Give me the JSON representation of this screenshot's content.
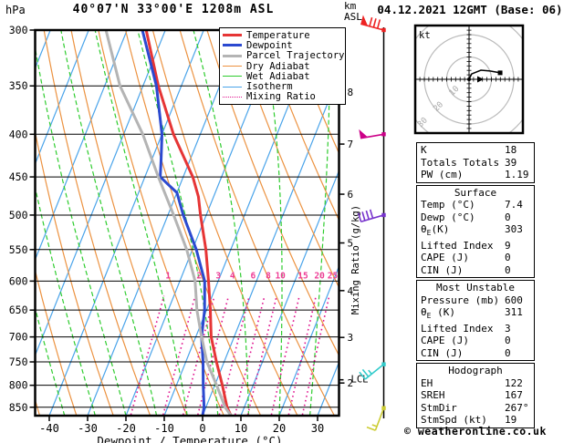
{
  "header": {
    "pressure_unit": "hPa",
    "station_title": "40°07'N 33°00'E 1208m ASL",
    "altitude_unit_line1": "km",
    "altitude_unit_line2": "ASL",
    "date_title": "04.12.2021 12GMT (Base: 06)"
  },
  "legend": {
    "items": [
      {
        "label": "Temperature",
        "color": "#e63535",
        "weight": 3,
        "dash": "solid"
      },
      {
        "label": "Dewpoint",
        "color": "#2b49d0",
        "weight": 3,
        "dash": "solid"
      },
      {
        "label": "Parcel Trajectory",
        "color": "#b4b4b4",
        "weight": 3,
        "dash": "solid"
      },
      {
        "label": "Dry Adiabat",
        "color": "#ec9240",
        "weight": 1.5,
        "dash": "solid"
      },
      {
        "label": "Wet Adiabat",
        "color": "#2ecc2e",
        "weight": 1.5,
        "dash": "solid"
      },
      {
        "label": "Isotherm",
        "color": "#4aa4ea",
        "weight": 1.5,
        "dash": "solid"
      },
      {
        "label": "Mixing Ratio",
        "color": "#e0138e",
        "weight": 1.5,
        "dash": "dotted"
      }
    ]
  },
  "axes": {
    "x_label": "Dewpoint / Temperature (°C)",
    "x_ticks": [
      -40,
      -30,
      -20,
      -10,
      0,
      10,
      20,
      30
    ],
    "pressure_ticks": [
      300,
      350,
      400,
      450,
      500,
      550,
      600,
      650,
      700,
      750,
      800,
      850
    ],
    "km_ticks": [
      {
        "km": 8,
        "p": 356
      },
      {
        "km": 7,
        "p": 411
      },
      {
        "km": 6,
        "p": 472
      },
      {
        "km": 5,
        "p": 540
      },
      {
        "km": 4,
        "p": 616
      },
      {
        "km": 3,
        "p": 701
      },
      {
        "km": 2,
        "p": 795
      }
    ],
    "lcl_label": "LCL",
    "lcl_pressure": 788,
    "mixing_axis_label": "Mixing Ratio (g/kg)"
  },
  "chart_data": {
    "type": "skewt-log-p",
    "pressure_range": [
      300,
      870
    ],
    "temp_axis_range_c": [
      -45,
      38
    ],
    "surface_pressure_mb": 870,
    "series": [
      {
        "name": "Temperature",
        "color": "#e63535",
        "width": 3,
        "points": [
          [
            300,
            -55
          ],
          [
            350,
            -46
          ],
          [
            400,
            -37
          ],
          [
            450,
            -27.5
          ],
          [
            475,
            -24
          ],
          [
            500,
            -21.5
          ],
          [
            550,
            -16.5
          ],
          [
            600,
            -12.5
          ],
          [
            650,
            -9
          ],
          [
            700,
            -6
          ],
          [
            750,
            -2
          ],
          [
            800,
            2
          ],
          [
            850,
            5.5
          ],
          [
            870,
            7.4
          ]
        ]
      },
      {
        "name": "Dewpoint",
        "color": "#2b49d0",
        "width": 3,
        "points": [
          [
            300,
            -56
          ],
          [
            350,
            -46.5
          ],
          [
            400,
            -40
          ],
          [
            430,
            -37.5
          ],
          [
            450,
            -36
          ],
          [
            460,
            -33
          ],
          [
            470,
            -30
          ],
          [
            500,
            -26
          ],
          [
            550,
            -19
          ],
          [
            600,
            -13.5
          ],
          [
            650,
            -10.5
          ],
          [
            700,
            -8.5
          ],
          [
            750,
            -5.5
          ],
          [
            800,
            -3
          ],
          [
            850,
            -0.5
          ],
          [
            870,
            0
          ]
        ]
      },
      {
        "name": "Parcel Trajectory",
        "color": "#b4b4b4",
        "width": 3,
        "points": [
          [
            300,
            -65.5
          ],
          [
            350,
            -56
          ],
          [
            400,
            -45
          ],
          [
            450,
            -36.5
          ],
          [
            500,
            -28.5
          ],
          [
            550,
            -21.5
          ],
          [
            600,
            -16
          ],
          [
            650,
            -12.5
          ],
          [
            700,
            -8.5
          ],
          [
            750,
            -4.5
          ],
          [
            800,
            0.5
          ],
          [
            850,
            5
          ],
          [
            870,
            7.4
          ]
        ]
      }
    ],
    "background": {
      "isotherms": {
        "color": "#4aa4ea",
        "min": -90,
        "max": 40,
        "step": 10
      },
      "dry_adiabats": {
        "color": "#ec9240",
        "theta_min": 240,
        "theta_max": 390,
        "step": 10
      },
      "wet_adiabats": {
        "color": "#2ecc2e",
        "t0_min": -44,
        "t0_max": 36,
        "step": 8
      },
      "mixing_ratio": {
        "color": "#e0138e",
        "label_color": "#ee3d96",
        "values": [
          1,
          2,
          3,
          4,
          6,
          8,
          10,
          15,
          20,
          25
        ],
        "top_pressure": 600
      }
    }
  },
  "wind_barbs": {
    "levels": [
      {
        "pressure": 300,
        "color": "#ee2222",
        "flags": 1,
        "fulls": 3,
        "halfs": 0,
        "dx": -0.97,
        "dy": -0.26
      },
      {
        "pressure": 400,
        "color": "#cc0088",
        "flags": 1,
        "fulls": 0,
        "halfs": 0,
        "dx": -0.98,
        "dy": 0.17
      },
      {
        "pressure": 500,
        "color": "#7733cc",
        "flags": 0,
        "fulls": 4,
        "halfs": 0,
        "dx": -0.96,
        "dy": 0.28
      },
      {
        "pressure": 755,
        "color": "#33cccc",
        "flags": 0,
        "fulls": 2,
        "halfs": 1,
        "dx": -0.78,
        "dy": 0.63
      },
      {
        "pressure": 852,
        "color": "#cccc33",
        "flags": 0,
        "fulls": 1,
        "halfs": 1,
        "dx": -0.35,
        "dy": 0.94
      }
    ]
  },
  "hodograph": {
    "unit_label": "kt",
    "rings_kt": [
      10,
      20,
      30
    ],
    "trace_kt": [
      [
        0,
        0
      ],
      [
        1.2,
        2.4
      ],
      [
        5.3,
        4.1
      ],
      [
        9.4,
        3.7
      ],
      [
        13.9,
        2.9
      ]
    ],
    "storm_motion_kt": [
      4.9,
      0
    ]
  },
  "tables": [
    {
      "title": null,
      "rows": [
        [
          "K",
          "18"
        ],
        [
          "Totals Totals",
          "39"
        ],
        [
          "PW (cm)",
          "1.19"
        ]
      ]
    },
    {
      "title": "Surface",
      "rows": [
        [
          "Temp (°C)",
          "7.4"
        ],
        [
          "Dewp (°C)",
          "0"
        ],
        [
          "θₑ(K)",
          "303"
        ],
        [
          "Lifted Index",
          "9"
        ],
        [
          "CAPE (J)",
          "0"
        ],
        [
          "CIN (J)",
          "0"
        ]
      ]
    },
    {
      "title": "Most Unstable",
      "rows": [
        [
          "Pressure (mb)",
          "600"
        ],
        [
          "θₑ (K)",
          "311"
        ],
        [
          "Lifted Index",
          "3"
        ],
        [
          "CAPE (J)",
          "0"
        ],
        [
          "CIN (J)",
          "0"
        ]
      ]
    },
    {
      "title": "Hodograph",
      "rows": [
        [
          "EH",
          "122"
        ],
        [
          "SREH",
          "167"
        ],
        [
          "StmDir",
          "267°"
        ],
        [
          "StmSpd (kt)",
          "19"
        ]
      ]
    }
  ],
  "footer": {
    "copyright": "© weatheronline.co.uk"
  }
}
